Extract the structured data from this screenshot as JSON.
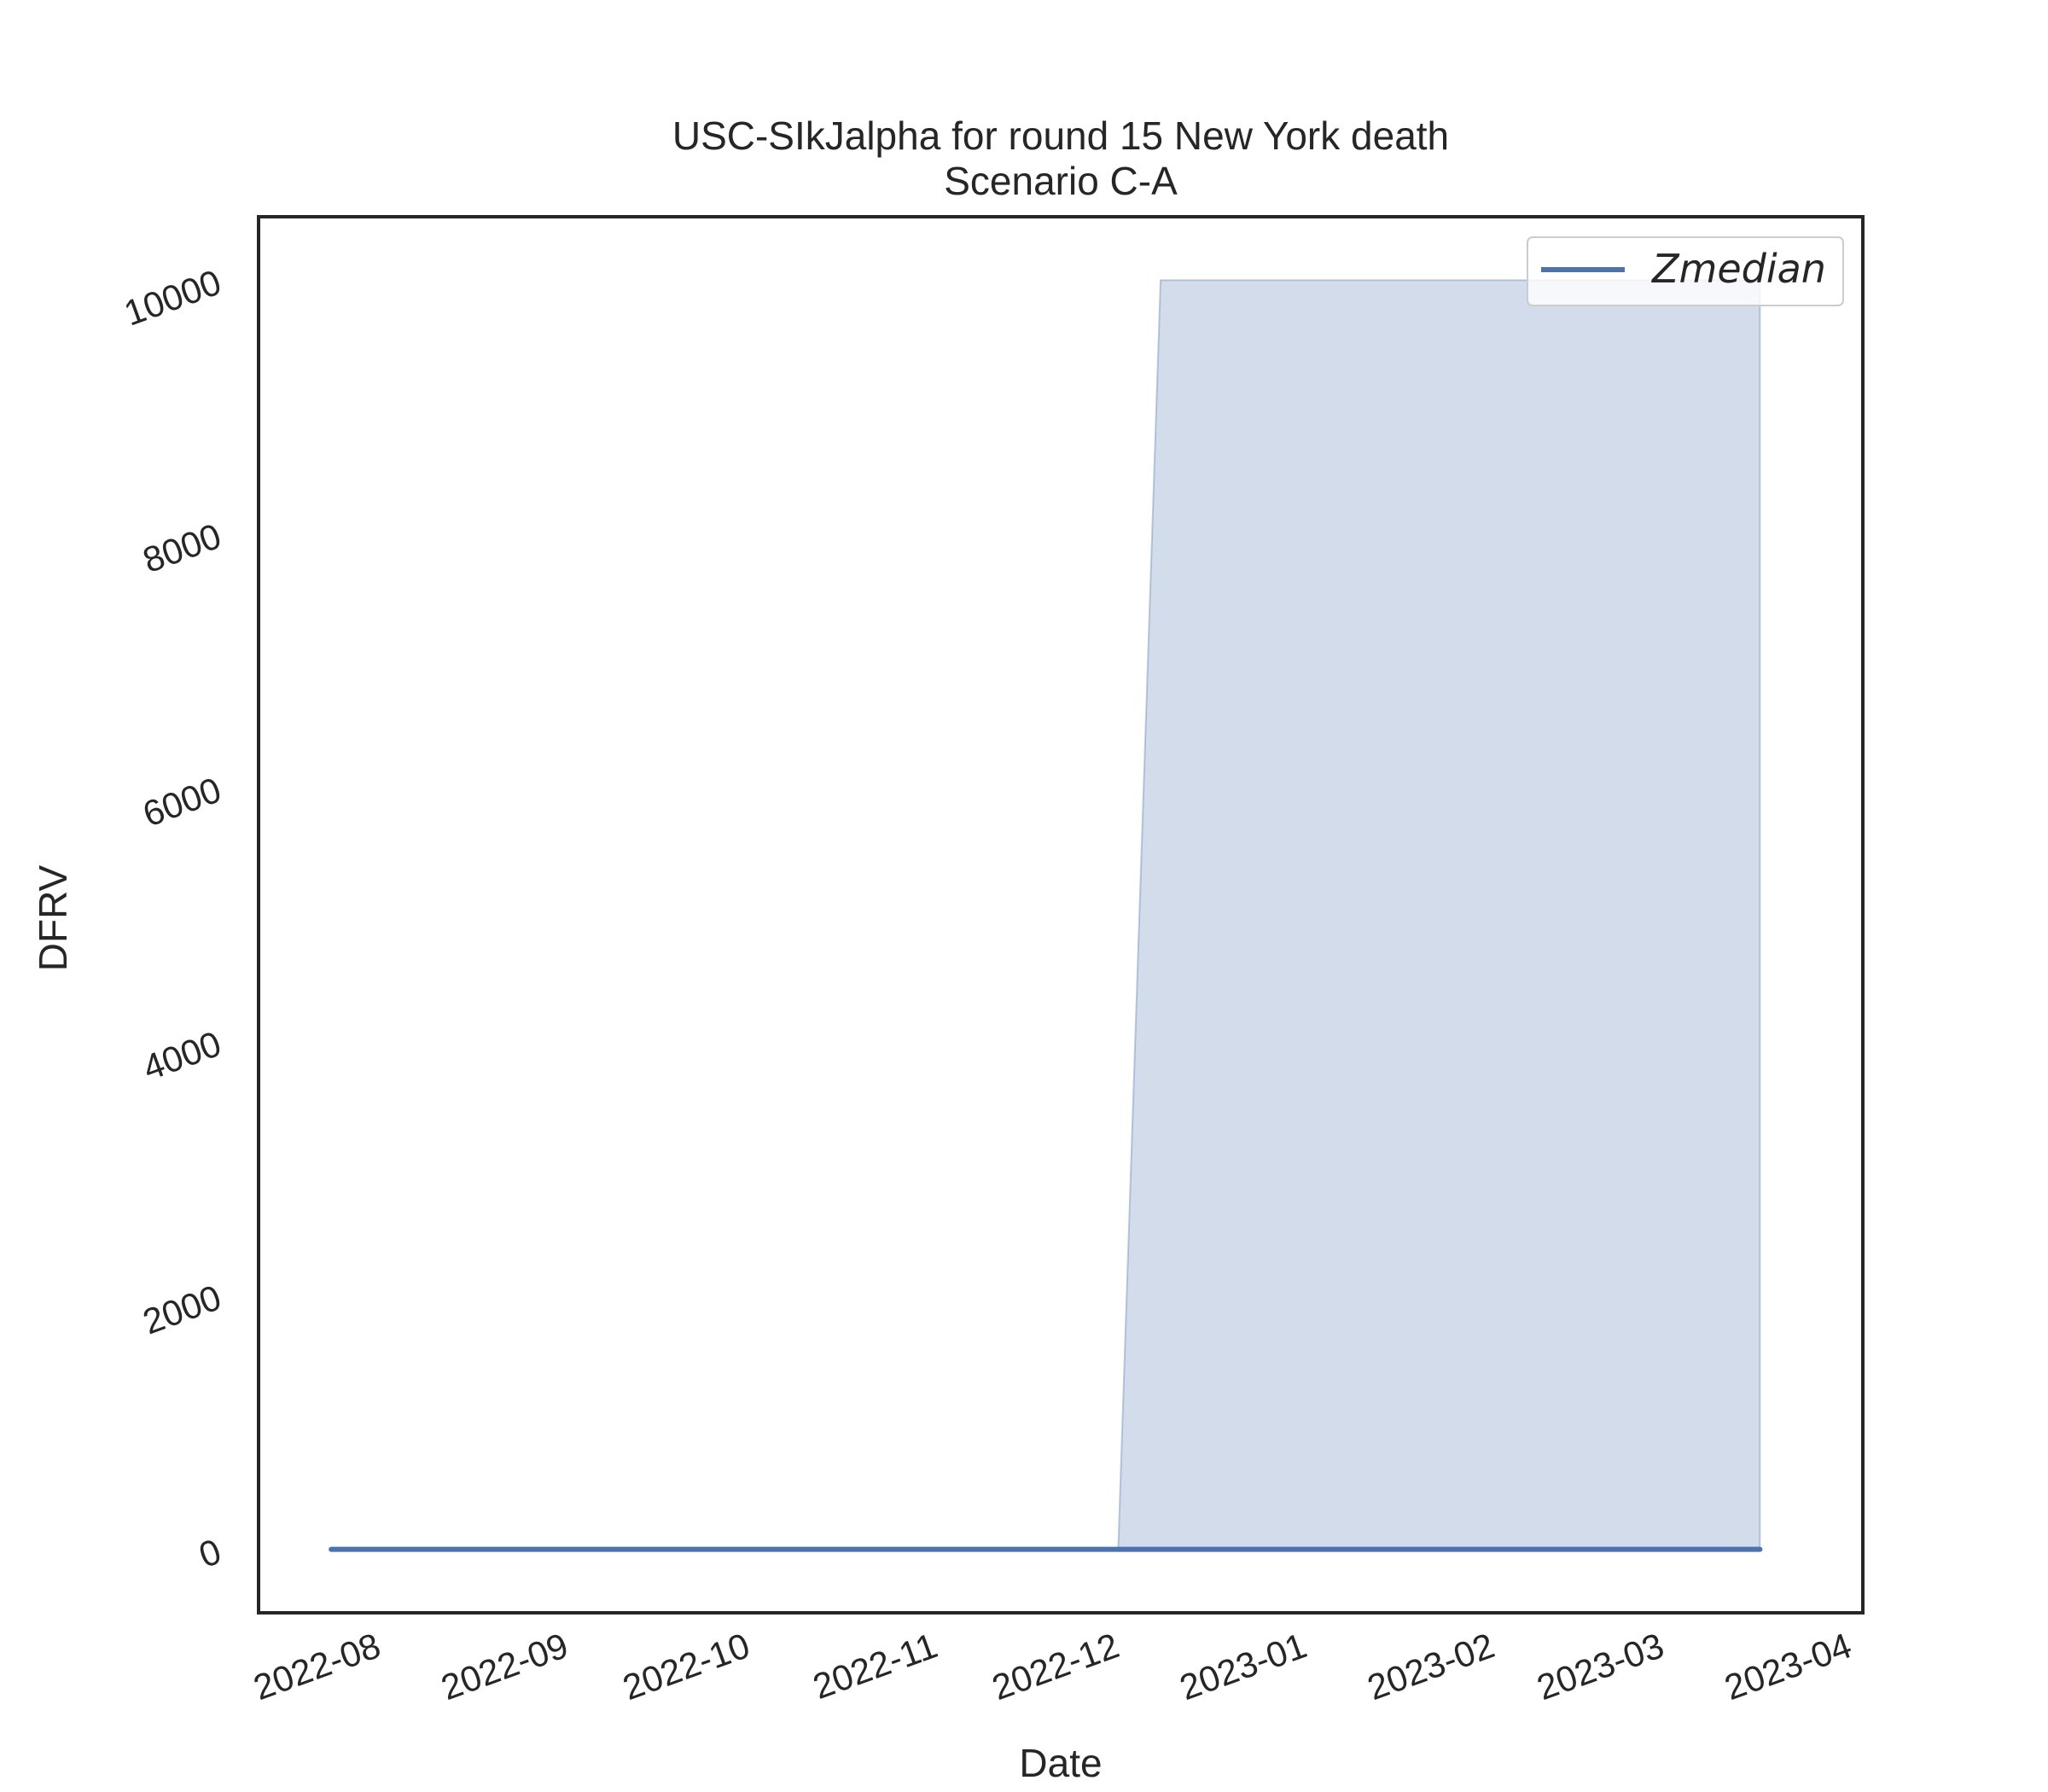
{
  "chart_data": {
    "type": "line",
    "title": "USC-SIkJalpha for round 15 New York death",
    "subtitle": "Scenario C-A",
    "xlabel": "Date",
    "ylabel": "DFRV",
    "x_ticks": [
      "2022-08",
      "2022-09",
      "2022-10",
      "2022-11",
      "2022-12",
      "2023-01",
      "2023-02",
      "2023-03",
      "2023-04"
    ],
    "y_ticks": [
      0,
      2000,
      4000,
      6000,
      8000,
      10000
    ],
    "xlim": [
      "2022-07-14",
      "2023-04-05"
    ],
    "ylim": [
      -500,
      10500
    ],
    "grid": false,
    "legend_position": "top-right",
    "series": [
      {
        "name": "Zmedian",
        "color": "#4c72b0",
        "x": [
          "2022-07-26",
          "2023-03-19"
        ],
        "y": [
          0,
          0
        ]
      }
    ],
    "band": {
      "color": "#4c72b0",
      "opacity": 0.25,
      "x": [
        "2022-12-03",
        "2022-12-10",
        "2023-03-19"
      ],
      "lower": [
        0,
        0,
        0
      ],
      "upper": [
        0,
        10000,
        10000
      ]
    }
  }
}
